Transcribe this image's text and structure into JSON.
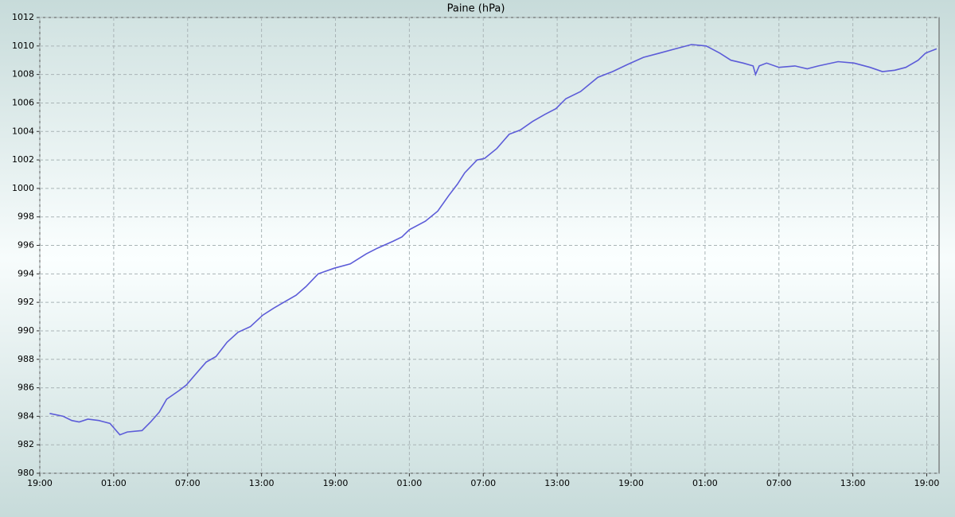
{
  "chart_data": {
    "type": "line",
    "title": "Paine (hPa)",
    "x": [
      0.8,
      1.9,
      2.6,
      3.2,
      3.9,
      4.8,
      5.7,
      6.1,
      6.5,
      7.1,
      8.3,
      9,
      9.7,
      10.3,
      11.3,
      11.9,
      12.6,
      13.5,
      14.3,
      15.2,
      16.1,
      17.1,
      18.1,
      19,
      20,
      20.8,
      21.6,
      22.6,
      23.9,
      25.2,
      26.5,
      27.4,
      28.7,
      29.4,
      30,
      31.3,
      32.3,
      33.2,
      33.9,
      34.5,
      35.5,
      36.1,
      37.1,
      38.1,
      39,
      40,
      41,
      41.9,
      42.7,
      43.9,
      45.3,
      46.5,
      47.7,
      49,
      50.3,
      51.6,
      52.9,
      54.1,
      55.2,
      56.1,
      57.1,
      57.9,
      58.1,
      58.4,
      59,
      60,
      61.3,
      62.3,
      63.2,
      64.8,
      66.1,
      67.4,
      68.4,
      69.4,
      70.3,
      71.3,
      71.9,
      72.8
    ],
    "values": [
      984.2,
      984.0,
      983.7,
      983.6,
      983.8,
      983.7,
      983.5,
      983.1,
      982.7,
      982.9,
      983.0,
      983.6,
      984.3,
      985.2,
      985.8,
      986.2,
      986.9,
      987.8,
      988.2,
      989.2,
      989.9,
      990.3,
      991.1,
      991.6,
      992.1,
      992.5,
      993.1,
      994.0,
      994.4,
      994.7,
      995.4,
      995.8,
      996.3,
      996.6,
      997.1,
      997.7,
      998.4,
      999.5,
      1000.3,
      1001.1,
      1002.0,
      1002.1,
      1002.8,
      1003.8,
      1004.1,
      1004.7,
      1005.2,
      1005.6,
      1006.3,
      1006.8,
      1007.8,
      1008.2,
      1008.7,
      1009.2,
      1009.5,
      1009.8,
      1010.1,
      1010.0,
      1009.5,
      1009.0,
      1008.8,
      1008.6,
      1008.0,
      1008.6,
      1008.8,
      1008.5,
      1008.6,
      1008.4,
      1008.6,
      1008.9,
      1008.8,
      1008.5,
      1008.2,
      1008.3,
      1008.5,
      1009.0,
      1009.5,
      1009.8
    ],
    "color": "#5c5cd8",
    "xlim": [
      0,
      73
    ],
    "xticks": [
      {
        "value": 0,
        "label": "19:00"
      },
      {
        "value": 6,
        "label": "01:00"
      },
      {
        "value": 12,
        "label": "07:00"
      },
      {
        "value": 18,
        "label": "13:00"
      },
      {
        "value": 24,
        "label": "19:00"
      },
      {
        "value": 30,
        "label": "01:00"
      },
      {
        "value": 36,
        "label": "07:00"
      },
      {
        "value": 42,
        "label": "13:00"
      },
      {
        "value": 48,
        "label": "19:00"
      },
      {
        "value": 54,
        "label": "01:00"
      },
      {
        "value": 60,
        "label": "07:00"
      },
      {
        "value": 66,
        "label": "13:00"
      },
      {
        "value": 72,
        "label": "19:00"
      }
    ],
    "ylim": [
      980,
      1012
    ],
    "yticks": [
      980,
      982,
      984,
      986,
      988,
      990,
      992,
      994,
      996,
      998,
      1000,
      1002,
      1004,
      1006,
      1008,
      1010,
      1012
    ],
    "grid": true
  }
}
